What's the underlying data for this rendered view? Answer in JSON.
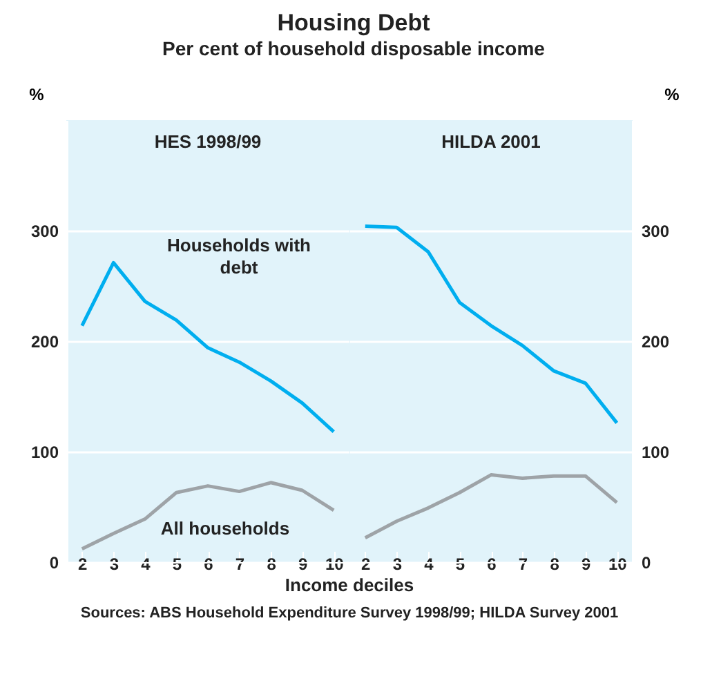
{
  "chart_data": [
    {
      "type": "other",
      "title": "Housing Debt",
      "subtitle": "Per cent of household disposable income",
      "annotations": [
        "Sources: ABS Household Expenditure Survey 1998/99; HILDA Survey 2001"
      ]
    },
    {
      "type": "line",
      "title": "HES 1998/99",
      "xlabel": "Income deciles",
      "ylabel": "%",
      "categories": [
        "2",
        "3",
        "4",
        "5",
        "6",
        "7",
        "8",
        "9",
        "10"
      ],
      "ylim": [
        0,
        400
      ],
      "yticks": [
        0,
        100,
        200,
        300
      ],
      "grid": "y",
      "series": [
        {
          "name": "Households with debt",
          "color": "#00aeef",
          "values": [
            214,
            271,
            236,
            219,
            194,
            181,
            164,
            144,
            118
          ]
        },
        {
          "name": "All households",
          "color": "#9ea3a7",
          "values": [
            12,
            26,
            39,
            63,
            69,
            64,
            72,
            65,
            47
          ]
        }
      ]
    },
    {
      "type": "line",
      "title": "HILDA 2001",
      "ylabel": "%",
      "categories": [
        "2",
        "3",
        "4",
        "5",
        "6",
        "7",
        "8",
        "9",
        "10"
      ],
      "ylim": [
        0,
        400
      ],
      "yticks": [
        0,
        100,
        200,
        300
      ],
      "grid": "y",
      "series": [
        {
          "color": "#00aeef",
          "values": [
            304,
            303,
            281,
            235,
            214,
            196,
            173,
            162,
            126
          ]
        },
        {
          "color": "#9ea3a7",
          "values": [
            22,
            37,
            49,
            63,
            79,
            76,
            78,
            78,
            54
          ]
        }
      ]
    }
  ]
}
